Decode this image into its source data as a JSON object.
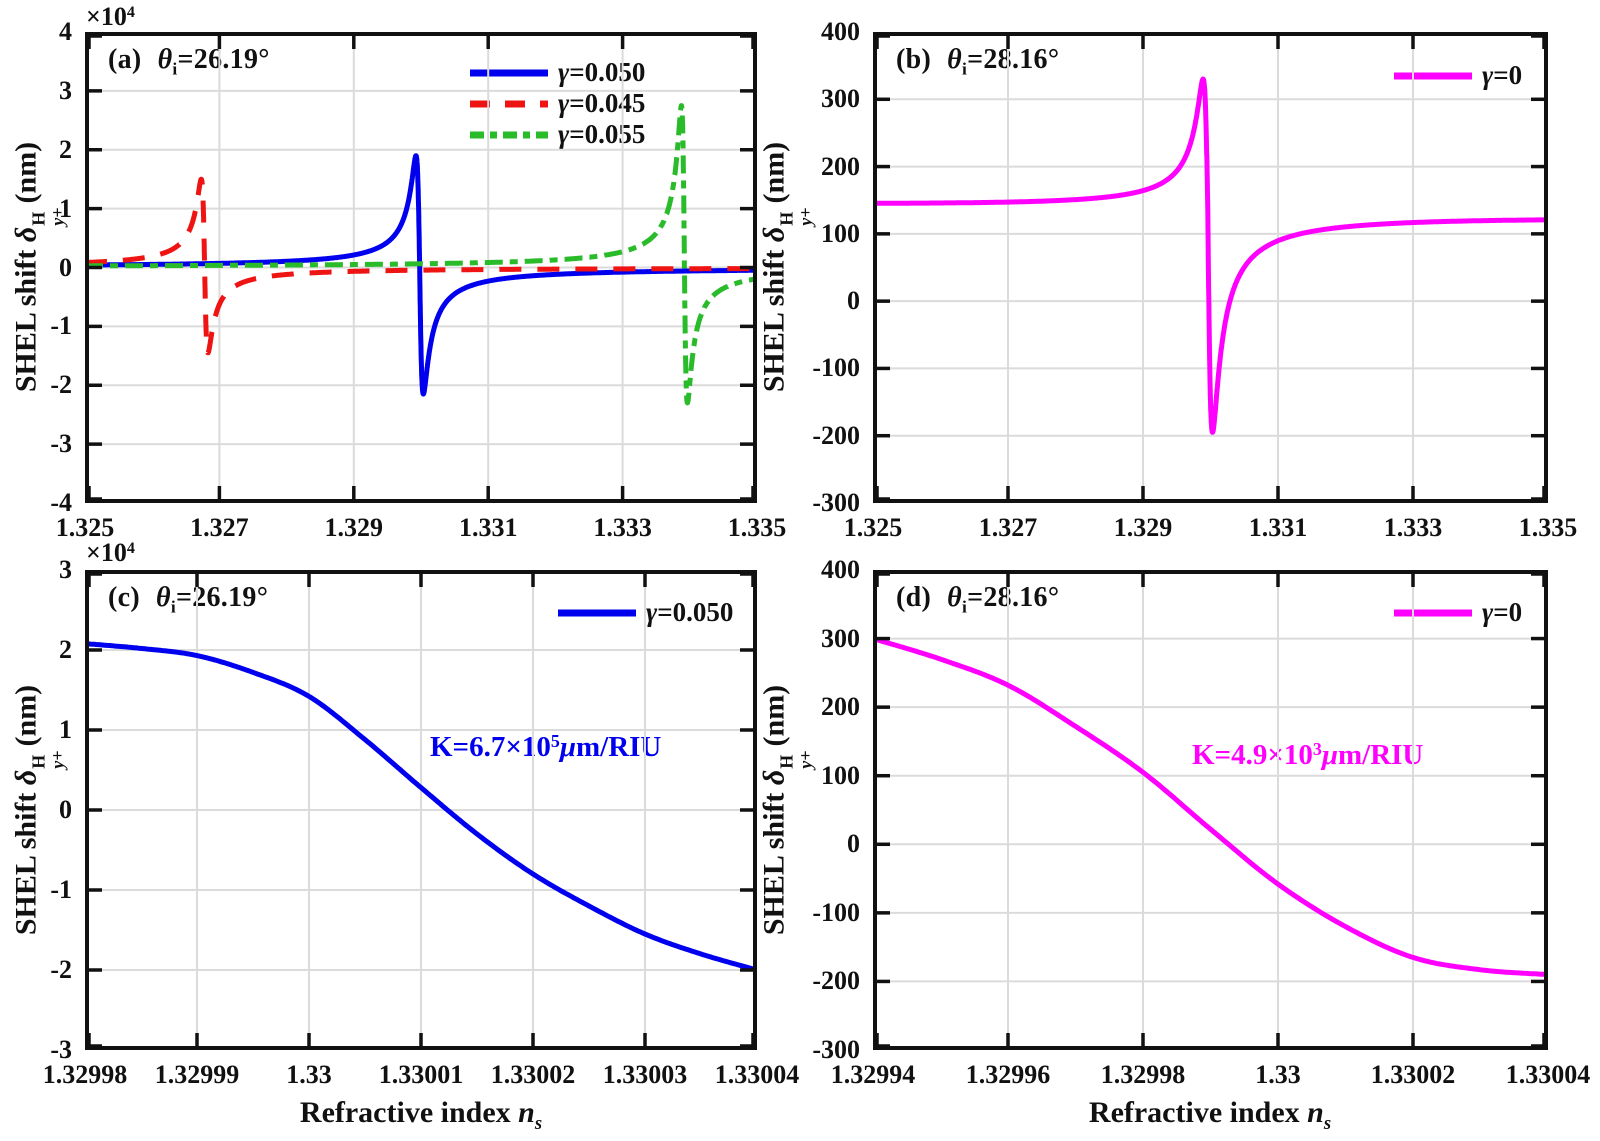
{
  "figure": {
    "background": "#FFFFFF",
    "axis_color": "#111111",
    "grid_color": "#DBDBDB"
  },
  "chart_data": {
    "type": "line",
    "grid": true,
    "xlabel": {
      "text": "Refractive index ",
      "var": "n",
      "var_sub": "s"
    },
    "ylabel": {
      "prefix": "SHEL shift ",
      "delta": "δ",
      "sup": "H",
      "sub": "y+",
      "suffix": "(nm)"
    },
    "panels": [
      {
        "id": "a",
        "tag": "(a)",
        "title": {
          "sym": "θ",
          "sub": "i",
          "rest": "=26.19°"
        },
        "y_multiplier": {
          "base": "×10",
          "exp": "4"
        },
        "xlim": [
          1.325,
          1.335
        ],
        "ylim": [
          -4,
          4
        ],
        "y_units": "×10^4 nm",
        "legend_position": "upper right inside",
        "xticks": [
          {
            "v": 1.325,
            "label": "1.325"
          },
          {
            "v": 1.327,
            "label": "1.327"
          },
          {
            "v": 1.329,
            "label": "1.329"
          },
          {
            "v": 1.331,
            "label": "1.331"
          },
          {
            "v": 1.333,
            "label": "1.333"
          },
          {
            "v": 1.335,
            "label": "1.335"
          }
        ],
        "yticks": [
          {
            "v": 4,
            "label": "4"
          },
          {
            "v": 3,
            "label": "3"
          },
          {
            "v": 2,
            "label": "2"
          },
          {
            "v": 1,
            "label": "1"
          },
          {
            "v": 0,
            "label": "0"
          },
          {
            "v": -1,
            "label": "-1"
          },
          {
            "v": -2,
            "label": "-2"
          },
          {
            "v": -3,
            "label": "-3"
          },
          {
            "v": -4,
            "label": "-4"
          }
        ],
        "series": [
          {
            "sym": "γ",
            "val": "=0.050",
            "color": "#0000EE",
            "dash": "solid",
            "model": "resonance",
            "x0": 1.32998,
            "w": 5.5e-05,
            "peak_up": 1.9,
            "peak_down": 2.15,
            "base": 0,
            "tilt": 0,
            "note": "peak +1.9e4 nm near ns=1.32993, dip -2.15e4 nm near ns=1.33004"
          },
          {
            "sym": "γ",
            "val": "=0.045",
            "color": "#EE1414",
            "dash": "dashed",
            "model": "resonance",
            "x0": 1.32678,
            "w": 5e-05,
            "peak_up": 1.5,
            "peak_down": 1.45,
            "base": 0,
            "tilt": 0,
            "note": "peak +1.5e4 nm near ns=1.32673, dip -1.45e4 nm near ns=1.32683"
          },
          {
            "sym": "γ",
            "val": "=0.055",
            "color": "#2ABB2A",
            "dash": "dashdot",
            "model": "resonance",
            "x0": 1.33392,
            "w": 4.5e-05,
            "peak_up": 2.75,
            "peak_down": 2.3,
            "base": 0,
            "tilt": 0,
            "note": "peak +2.75e4 nm near ns=1.33388, dip -2.3e4 nm near ns=1.33397"
          }
        ]
      },
      {
        "id": "b",
        "tag": "(b)",
        "title": {
          "sym": "θ",
          "sub": "i",
          "rest": "=28.16°"
        },
        "y_multiplier": null,
        "xlim": [
          1.325,
          1.335
        ],
        "ylim": [
          -300,
          400
        ],
        "y_units": "nm",
        "legend_position": "upper right inside",
        "xticks": [
          {
            "v": 1.325,
            "label": "1.325"
          },
          {
            "v": 1.327,
            "label": "1.327"
          },
          {
            "v": 1.329,
            "label": "1.329"
          },
          {
            "v": 1.331,
            "label": "1.331"
          },
          {
            "v": 1.333,
            "label": "1.333"
          },
          {
            "v": 1.335,
            "label": "1.335"
          }
        ],
        "yticks": [
          {
            "v": 400,
            "label": "400"
          },
          {
            "v": 300,
            "label": "300"
          },
          {
            "v": 200,
            "label": "200"
          },
          {
            "v": 100,
            "label": "100"
          },
          {
            "v": 0,
            "label": "0"
          },
          {
            "v": -100,
            "label": "-100"
          },
          {
            "v": -200,
            "label": "-200"
          },
          {
            "v": -300,
            "label": "-300"
          }
        ],
        "series": [
          {
            "sym": "γ",
            "val": "=0",
            "color": "#FF00FF",
            "dash": "solid",
            "model": "resonance",
            "x0": 1.32996,
            "w": 7e-05,
            "peak_up": 195,
            "peak_down": 330,
            "base": 135,
            "tilt": 5,
            "note": "baseline ~145 nm left, peak ~335 nm near ns=1.32989, dip ~-190 nm near ns=1.33003, ~125 nm right"
          }
        ]
      },
      {
        "id": "c",
        "tag": "(c)",
        "title": {
          "sym": "θ",
          "sub": "i",
          "rest": "=26.19°"
        },
        "y_multiplier": {
          "base": "×10",
          "exp": "4"
        },
        "xlim": [
          1.32998,
          1.33004
        ],
        "ylim": [
          -3,
          3
        ],
        "y_units": "×10^4 nm",
        "legend_position": "upper right inside",
        "annotation": {
          "k": "K=6.7×10",
          "exp": "5",
          "mu": "μ",
          "unit": "m/RIU",
          "color": "#0000EE"
        },
        "xticks": [
          {
            "v": 1.32998,
            "label": "1.32998"
          },
          {
            "v": 1.32999,
            "label": "1.32999"
          },
          {
            "v": 1.33,
            "label": "1.33"
          },
          {
            "v": 1.33001,
            "label": "1.33001"
          },
          {
            "v": 1.33002,
            "label": "1.33002"
          },
          {
            "v": 1.33003,
            "label": "1.33003"
          },
          {
            "v": 1.33004,
            "label": "1.33004"
          }
        ],
        "yticks": [
          {
            "v": 3,
            "label": "3"
          },
          {
            "v": 2,
            "label": "2"
          },
          {
            "v": 1,
            "label": "1"
          },
          {
            "v": 0,
            "label": "0"
          },
          {
            "v": -1,
            "label": "-1"
          },
          {
            "v": -2,
            "label": "-2"
          },
          {
            "v": -3,
            "label": "-3"
          }
        ],
        "series": [
          {
            "sym": "γ",
            "val": "=0.050",
            "color": "#0000EE",
            "dash": "solid",
            "model": "points",
            "points": [
              [
                1.32998,
                2.08
              ],
              [
                1.329985,
                2.02
              ],
              [
                1.32999,
                1.93
              ],
              [
                1.329995,
                1.72
              ],
              [
                1.33,
                1.42
              ],
              [
                1.330005,
                0.88
              ],
              [
                1.33001,
                0.28
              ],
              [
                1.330015,
                -0.3
              ],
              [
                1.33002,
                -0.8
              ],
              [
                1.330025,
                -1.2
              ],
              [
                1.33003,
                -1.55
              ],
              [
                1.330035,
                -1.8
              ],
              [
                1.33004,
                -2.0
              ]
            ]
          }
        ]
      },
      {
        "id": "d",
        "tag": "(d)",
        "title": {
          "sym": "θ",
          "sub": "i",
          "rest": "=28.16°"
        },
        "y_multiplier": null,
        "xlim": [
          1.32994,
          1.33004
        ],
        "ylim": [
          -300,
          400
        ],
        "y_units": "nm",
        "legend_position": "upper right inside",
        "annotation": {
          "k": "K=4.9×10",
          "exp": "3",
          "mu": "μ",
          "unit": "m/RIU",
          "color": "#FF00FF"
        },
        "xticks": [
          {
            "v": 1.32994,
            "label": "1.32994"
          },
          {
            "v": 1.32996,
            "label": "1.32996"
          },
          {
            "v": 1.32998,
            "label": "1.32998"
          },
          {
            "v": 1.33,
            "label": "1.33"
          },
          {
            "v": 1.33002,
            "label": "1.33002"
          },
          {
            "v": 1.33004,
            "label": "1.33004"
          }
        ],
        "yticks": [
          {
            "v": 400,
            "label": "400"
          },
          {
            "v": 300,
            "label": "300"
          },
          {
            "v": 200,
            "label": "200"
          },
          {
            "v": 100,
            "label": "100"
          },
          {
            "v": 0,
            "label": "0"
          },
          {
            "v": -100,
            "label": "-100"
          },
          {
            "v": -200,
            "label": "-200"
          },
          {
            "v": -300,
            "label": "-300"
          }
        ],
        "series": [
          {
            "sym": "γ",
            "val": "=0",
            "color": "#FF00FF",
            "dash": "solid",
            "model": "points",
            "points": [
              [
                1.32994,
                300
              ],
              [
                1.32995,
                270
              ],
              [
                1.32996,
                232
              ],
              [
                1.32997,
                172
              ],
              [
                1.32998,
                105
              ],
              [
                1.32999,
                22
              ],
              [
                1.33,
                -58
              ],
              [
                1.33001,
                -120
              ],
              [
                1.33002,
                -165
              ],
              [
                1.33003,
                -183
              ],
              [
                1.33004,
                -190
              ]
            ]
          }
        ]
      }
    ]
  }
}
